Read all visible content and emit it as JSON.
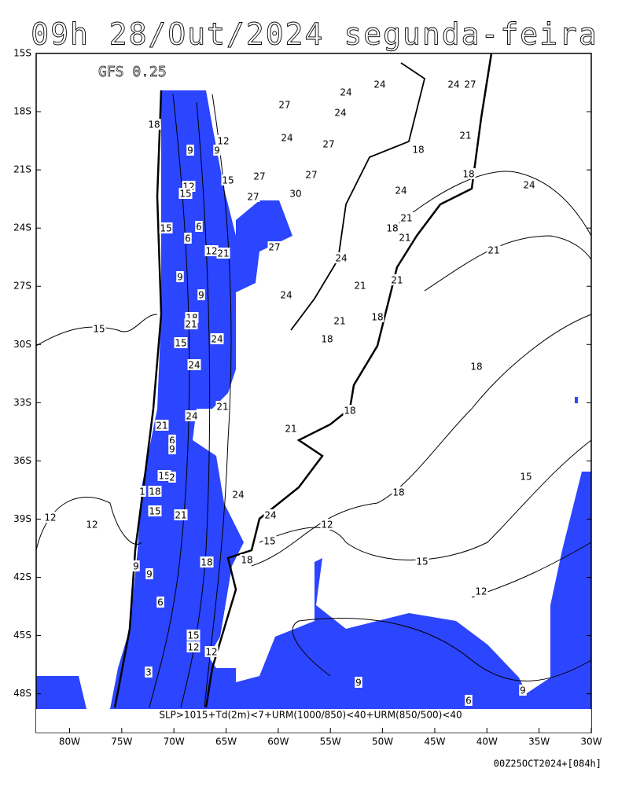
{
  "title": "09h 28/Out/2024 segunda-feira",
  "model": "GFS 0.25",
  "caption": "SLP>1015+Td(2m)<7+URM(1000/850)<40+URM(850/500)<40",
  "run": "00Z25OCT2024+[084h]",
  "map": {
    "lon_lim": [
      -83.2,
      -30
    ],
    "lat_lim": [
      -15,
      -50
    ],
    "lat_ticks": [
      {
        "value": -15,
        "label": "15S"
      },
      {
        "value": -18,
        "label": "18S"
      },
      {
        "value": -21,
        "label": "21S"
      },
      {
        "value": -24,
        "label": "24S"
      },
      {
        "value": -27,
        "label": "27S"
      },
      {
        "value": -30,
        "label": "30S"
      },
      {
        "value": -33,
        "label": "33S"
      },
      {
        "value": -36,
        "label": "36S"
      },
      {
        "value": -39,
        "label": "39S"
      },
      {
        "value": -42,
        "label": "42S"
      },
      {
        "value": -45,
        "label": "45S"
      },
      {
        "value": -48,
        "label": "48S"
      }
    ],
    "lon_ticks": [
      {
        "value": -80,
        "label": "80W"
      },
      {
        "value": -75,
        "label": "75W"
      },
      {
        "value": -70,
        "label": "70W"
      },
      {
        "value": -65,
        "label": "65W"
      },
      {
        "value": -60,
        "label": "60W"
      },
      {
        "value": -55,
        "label": "55W"
      },
      {
        "value": -50,
        "label": "50W"
      },
      {
        "value": -45,
        "label": "45W"
      },
      {
        "value": -40,
        "label": "40W"
      },
      {
        "value": -35,
        "label": "35W"
      },
      {
        "value": -30,
        "label": "30W"
      }
    ],
    "contour_labels": [
      24,
      24,
      27,
      24,
      27,
      24,
      18,
      12,
      9,
      9,
      24,
      27,
      21,
      18,
      15,
      27,
      12,
      15,
      27,
      30,
      27,
      24,
      18,
      24,
      21,
      15,
      6,
      6,
      18,
      21,
      12,
      21,
      27,
      21,
      24,
      9,
      21,
      21,
      24,
      9,
      18,
      21,
      18,
      21,
      15,
      15,
      24,
      18,
      24,
      18,
      21,
      24,
      18,
      21,
      21,
      6,
      9,
      15,
      2,
      15,
      18,
      1,
      18,
      24,
      15,
      21,
      24,
      12,
      12,
      12,
      15,
      18,
      18,
      15,
      9,
      9,
      12,
      6,
      15,
      12,
      12,
      3,
      9,
      9,
      6
    ]
  }
}
